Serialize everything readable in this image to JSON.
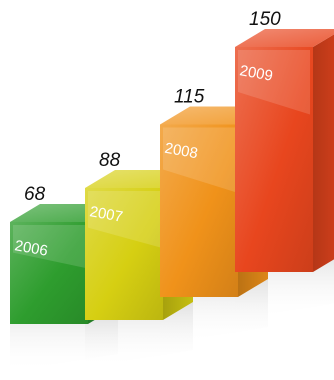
{
  "chart_data": {
    "type": "bar",
    "style": "3d-perspective",
    "categories": [
      "2006",
      "2007",
      "2008",
      "2009"
    ],
    "values": [
      68,
      88,
      115,
      150
    ],
    "title": "",
    "xlabel": "",
    "ylabel": "",
    "legend": "none",
    "grid": false,
    "colors": {
      "2006": "#2e9d2e",
      "2007": "#d6cf12",
      "2008": "#f0921a",
      "2009": "#e8461e"
    }
  }
}
